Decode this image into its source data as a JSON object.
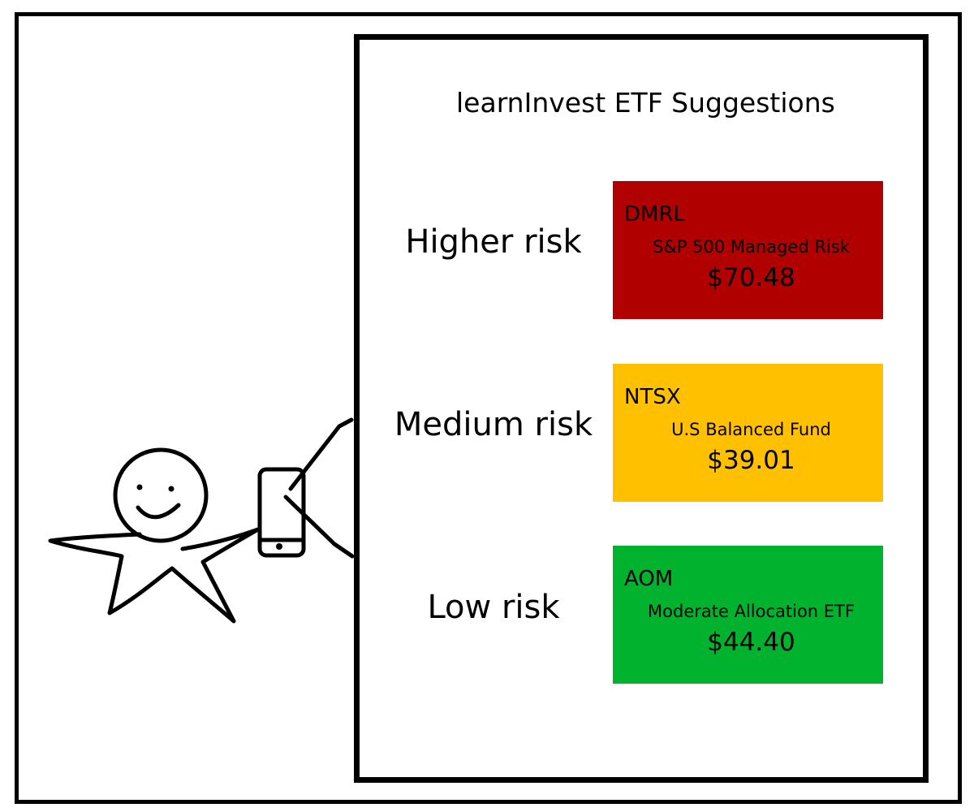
{
  "app": {
    "title": "learnInvest ETF Suggestions"
  },
  "suggestions": [
    {
      "risk": "Higher risk",
      "ticker": "DMRL",
      "fund_name": "S&P 500 Managed Risk",
      "price": "$70.48",
      "color": "#B00000"
    },
    {
      "risk": "Medium risk",
      "ticker": "NTSX",
      "fund_name": "U.S Balanced Fund",
      "price": "$39.01",
      "color": "#FFC000"
    },
    {
      "risk": "Low risk",
      "ticker": "AOM",
      "fund_name": "Moderate Allocation ETF",
      "price": "$44.40",
      "color": "#00B22D"
    }
  ],
  "figure": {
    "person_icon": "smiling-stick-person-icon",
    "phone_icon": "smartphone-icon"
  }
}
